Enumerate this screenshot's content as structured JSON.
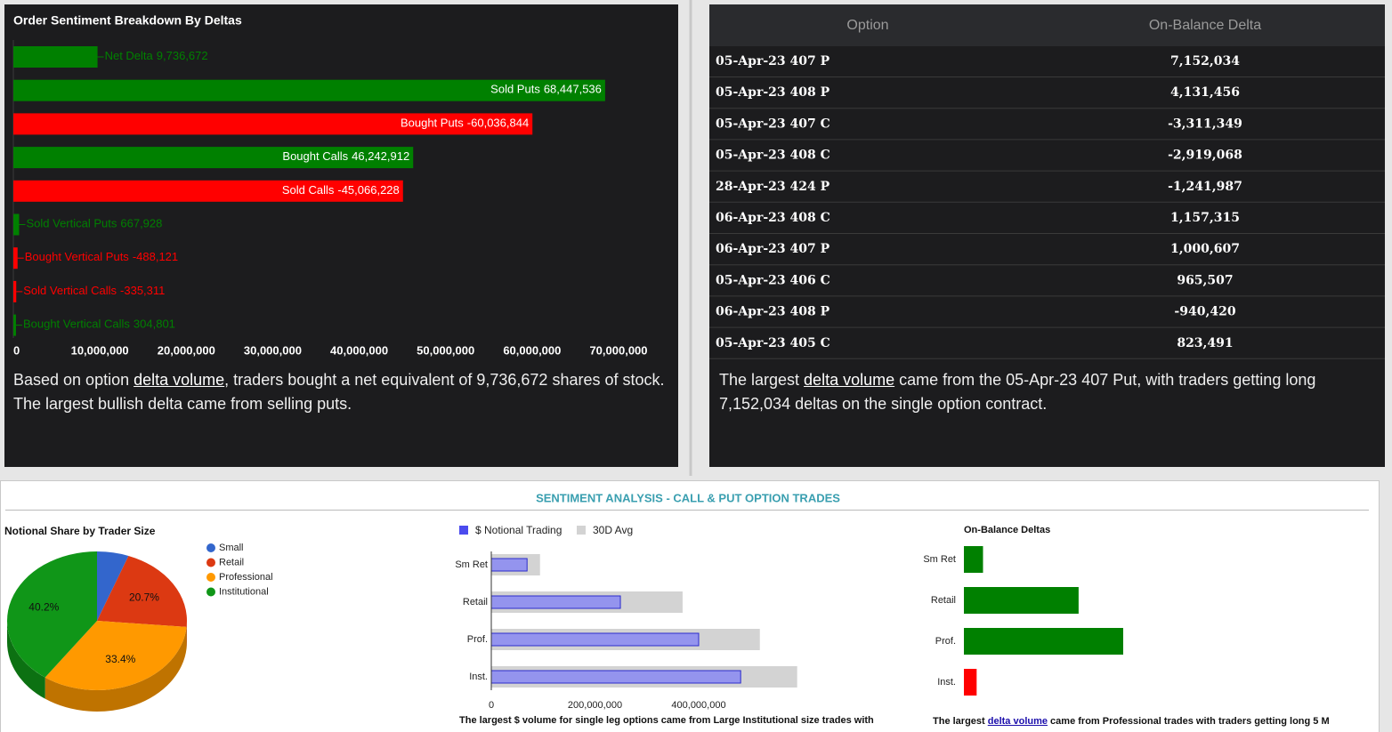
{
  "chart_data": [
    {
      "type": "bar",
      "orientation": "horizontal",
      "title": "Order Sentiment Breakdown By Deltas",
      "categories": [
        "Net Delta",
        "Sold Puts",
        "Bought Puts",
        "Bought Calls",
        "Sold Calls",
        "Sold Vertical Puts",
        "Bought Vertical Puts",
        "Sold Vertical Calls",
        "Bought Vertical Calls"
      ],
      "values": [
        9736672,
        68447536,
        -60036844,
        46242912,
        -45066228,
        667928,
        -488121,
        -335311,
        304801
      ],
      "value_labels": [
        "9,736,672",
        "68,447,536",
        "-60,036,844",
        "46,242,912",
        "-45,066,228",
        "667,928",
        "-488,121",
        "-335,311",
        "304,801"
      ],
      "colors": [
        "#008000",
        "#008000",
        "#ff0000",
        "#008000",
        "#ff0000",
        "#008000",
        "#ff0000",
        "#ff0000",
        "#008000"
      ],
      "xlim": [
        0,
        70000000
      ],
      "xticks": [
        0,
        {
          "value": 10000000,
          "label": "10,000,000"
        },
        {
          "value": 20000000,
          "label": "20,000,000"
        },
        {
          "value": 30000000,
          "label": "30,000,000"
        },
        {
          "value": 40000000,
          "label": "40,000,000"
        },
        {
          "value": 50000000,
          "label": "50,000,000"
        },
        {
          "value": 60000000,
          "label": "60,000,000"
        },
        {
          "value": 70000000,
          "label": "70,000,000"
        }
      ]
    },
    {
      "type": "pie",
      "title": "Notional Share by Trader Size",
      "categories": [
        "Small",
        "Retail",
        "Professional",
        "Institutional"
      ],
      "values": [
        5.7,
        20.7,
        33.4,
        40.2
      ],
      "value_labels": [
        null,
        "20.7%",
        "33.4%",
        "40.2%"
      ],
      "colors": [
        "#3366cc",
        "#dc3912",
        "#ff9900",
        "#109618"
      ],
      "legend": "right"
    },
    {
      "type": "bar",
      "orientation": "horizontal",
      "categories": [
        "Sm Ret",
        "Retail",
        "Prof.",
        "Inst."
      ],
      "series": [
        {
          "name": "$ Notional Trading",
          "color": "#9494ee",
          "values": [
            69000000,
            249000000,
            400000000,
            481000000
          ]
        },
        {
          "name": "30D Avg",
          "color": "#d3d3d3",
          "values": [
            94000000,
            369000000,
            518000000,
            590000000
          ]
        }
      ],
      "xlim": [
        0,
        600000000
      ],
      "xticks": [
        0,
        {
          "value": 200000000,
          "label": "200,000,000"
        },
        {
          "value": 400000000,
          "label": "400,000,000"
        }
      ],
      "legend": "top",
      "caption": "The largest $ volume for single leg options came from Large Institutional size trades with"
    },
    {
      "type": "bar",
      "orientation": "horizontal",
      "title": "On-Balance Deltas",
      "categories": [
        "Sm Ret",
        "Retail",
        "Prof.",
        "Inst."
      ],
      "values": [
        600000,
        3600000,
        5000000,
        -400000
      ],
      "colors": [
        "#008000",
        "#008000",
        "#008000",
        "#ff0000"
      ],
      "caption": [
        "The largest ",
        "delta volume",
        " came from Professional trades with traders getting long 5 M"
      ]
    }
  ],
  "table": {
    "columns": [
      "Option",
      "On-Balance Delta"
    ],
    "rows": [
      [
        "05-Apr-23 407 P",
        "7,152,034"
      ],
      [
        "05-Apr-23 408 P",
        "4,131,456"
      ],
      [
        "05-Apr-23 407 C",
        "-3,311,349"
      ],
      [
        "05-Apr-23 408 C",
        "-2,919,068"
      ],
      [
        "28-Apr-23 424 P",
        "-1,241,987"
      ],
      [
        "06-Apr-23 408 C",
        "1,157,315"
      ],
      [
        "06-Apr-23 407 P",
        "1,000,607"
      ],
      [
        "05-Apr-23 406 C",
        "965,507"
      ],
      [
        "06-Apr-23 408 P",
        "-940,420"
      ],
      [
        "05-Apr-23 405 C",
        "823,491"
      ]
    ]
  },
  "texts": {
    "left_summary": [
      "Based on option ",
      "delta volume",
      ", traders bought a net equivalent of 9,736,672 shares of stock. The largest bullish delta came from selling puts."
    ],
    "right_summary": [
      "The largest ",
      "delta volume",
      " came from the 05-Apr-23 407 Put, with traders getting long 7,152,034 deltas on the single option contract."
    ],
    "panel_title": "SENTIMENT ANALYSIS - CALL & PUT OPTION TRADES"
  }
}
